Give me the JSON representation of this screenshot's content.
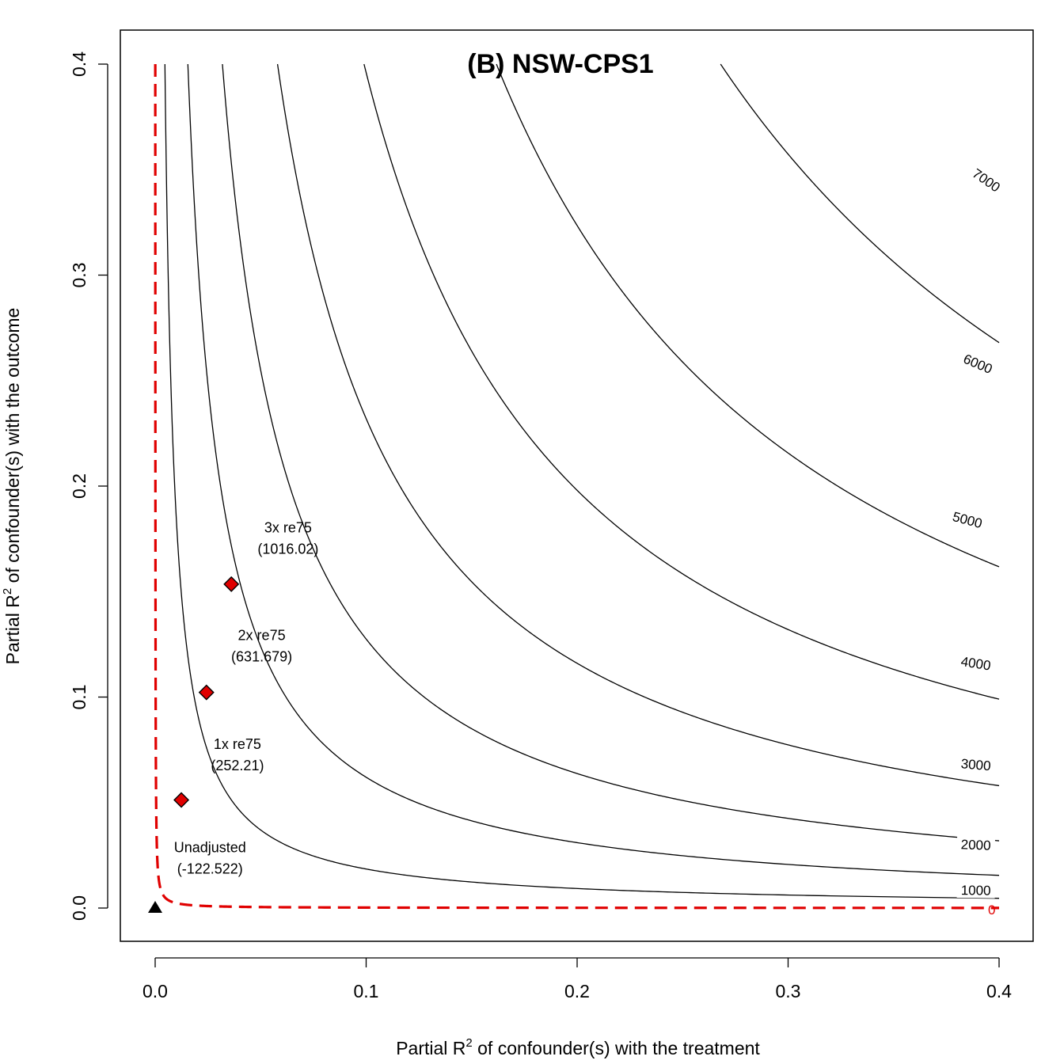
{
  "chart_data": {
    "type": "contour",
    "title": "(B) NSW-CPS1",
    "xlabel": {
      "pre": "Partial R",
      "sup": "2",
      "post": " of confounder(s) with the treatment"
    },
    "ylabel": {
      "pre": "Partial R",
      "sup": "2",
      "post": " of confounder(s) with the outcome"
    },
    "xlim": [
      0,
      0.4
    ],
    "ylim": [
      0,
      0.4
    ],
    "xticks": [
      "0.0",
      "0.1",
      "0.2",
      "0.3",
      "0.4"
    ],
    "yticks": [
      "0.0",
      "0.1",
      "0.2",
      "0.3",
      "0.4"
    ],
    "contour_color": "#000000",
    "threshold_color": "#e00000",
    "contours": [
      {
        "level": 1000,
        "label": "1000",
        "a": 0.00185,
        "label_at": {
          "x": 0.389,
          "y": 0.0085
        }
      },
      {
        "level": 2000,
        "label": "2000",
        "a": 0.0062,
        "label_at": {
          "x": 0.389,
          "y": 0.03
        }
      },
      {
        "level": 3000,
        "label": "3000",
        "a": 0.01275,
        "label_at": {
          "x": 0.389,
          "y": 0.068
        }
      },
      {
        "level": 4000,
        "label": "4000",
        "a": 0.0232,
        "label_at": {
          "x": 0.389,
          "y": 0.116
        }
      },
      {
        "level": 5000,
        "label": "5000",
        "a": 0.0396,
        "label_at": {
          "x": 0.385,
          "y": 0.184
        }
      },
      {
        "level": 6000,
        "label": "6000",
        "a": 0.0647,
        "label_at": {
          "x": 0.39,
          "y": 0.258
        }
      },
      {
        "level": 7000,
        "label": "7000",
        "a": 0.1072,
        "label_at": {
          "x": 0.394,
          "y": 0.345
        }
      }
    ],
    "threshold": {
      "level": 0,
      "label": "0",
      "a": 2.33e-05
    },
    "benchmarks": [
      {
        "name": "1x re75",
        "estimate": "(252.21)",
        "x": 0.0124,
        "y": 0.0512,
        "label_at": {
          "x": 0.039,
          "y": 0.0755
        }
      },
      {
        "name": "2x re75",
        "estimate": "(631.679)",
        "x": 0.0243,
        "y": 0.1022,
        "label_at": {
          "x": 0.0505,
          "y": 0.127
        }
      },
      {
        "name": "3x re75",
        "estimate": "(1016.02)",
        "x": 0.0361,
        "y": 0.1535,
        "label_at": {
          "x": 0.063,
          "y": 0.178
        }
      }
    ],
    "unadjusted": {
      "name": "Unadjusted",
      "estimate": "(-122.522)",
      "x": 0,
      "y": 0,
      "label_at": {
        "x": 0.026,
        "y": 0.0265
      }
    }
  }
}
